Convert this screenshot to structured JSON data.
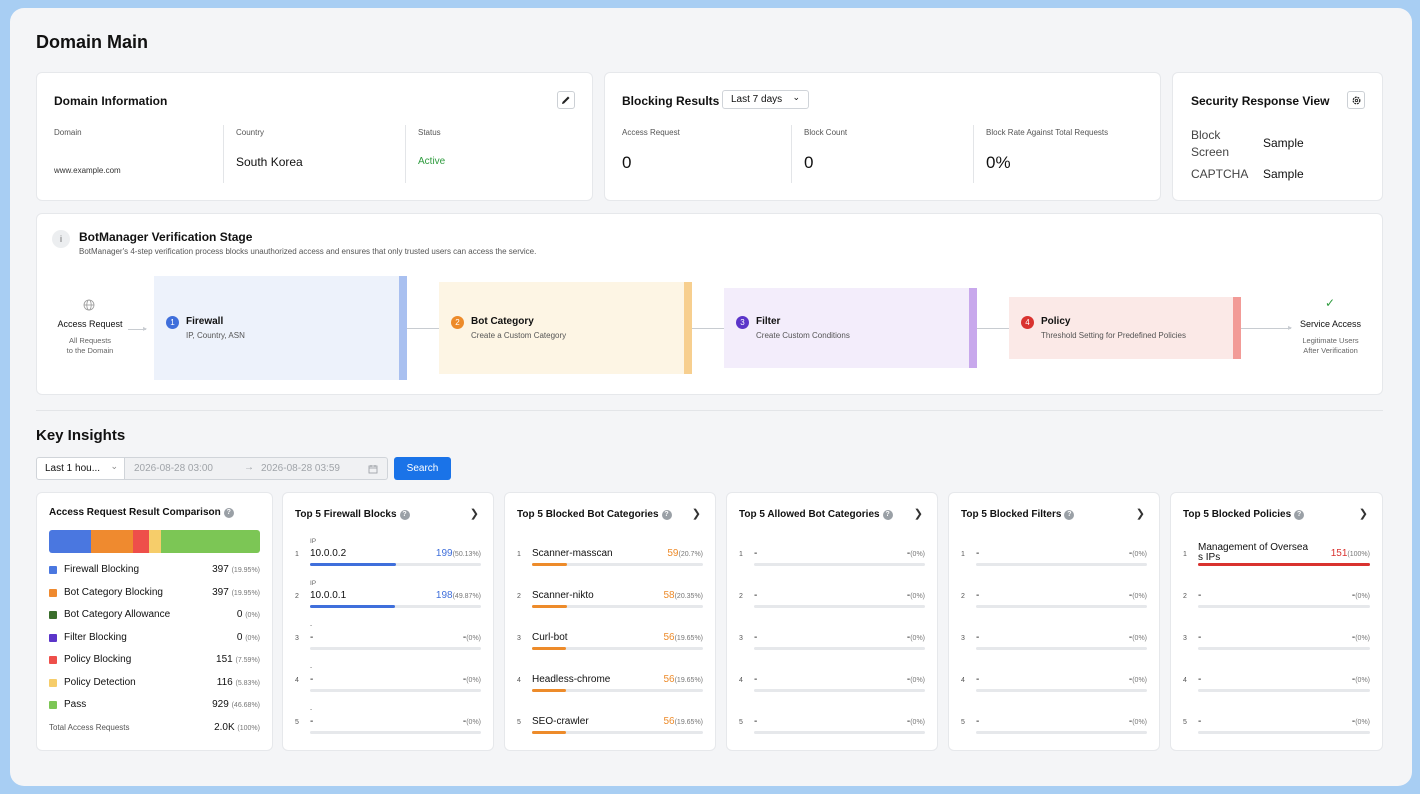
{
  "page": {
    "title": "Domain Main"
  },
  "domain_info": {
    "title": "Domain Information",
    "domain_label": "Domain",
    "domain_value": "www.example.com",
    "country_label": "Country",
    "country_value": "South Korea",
    "status_label": "Status",
    "status_value": "Active"
  },
  "blocking": {
    "title": "Blocking Results",
    "range": "Last 7 days",
    "access_label": "Access Request",
    "access_value": "0",
    "block_label": "Block Count",
    "block_value": "0",
    "rate_label": "Block Rate Against Total Requests",
    "rate_value": "0%"
  },
  "security": {
    "title": "Security Response View",
    "rows": [
      {
        "label": "Block Screen",
        "value": "Sample"
      },
      {
        "label": "CAPTCHA",
        "value": "Sample"
      }
    ]
  },
  "verification": {
    "title": "BotManager Verification Stage",
    "subtitle": "BotManager's 4-step verification process blocks unauthorized access and ensures that only trusted users can access the service.",
    "access_request": "Access Request",
    "access_desc1": "All Requests",
    "access_desc2": "to the Domain",
    "stages": [
      {
        "num": "1",
        "name": "Firewall",
        "desc": "IP, Country, ASN",
        "color": "#3f6fdb"
      },
      {
        "num": "2",
        "name": "Bot Category",
        "desc": "Create a Custom Category",
        "color": "#ed8b2a"
      },
      {
        "num": "3",
        "name": "Filter",
        "desc": "Create Custom Conditions",
        "color": "#5b35c9"
      },
      {
        "num": "4",
        "name": "Policy",
        "desc": "Threshold Setting for Predefined Policies",
        "color": "#d9322f"
      }
    ],
    "service_access": "Service Access",
    "service_desc1": "Legitimate Users",
    "service_desc2": "After Verification"
  },
  "insights": {
    "title": "Key Insights",
    "range_select": "Last 1 hou...",
    "date_from": "2026-08-28 03:00",
    "date_to": "2026-08-28 03:59",
    "search_label": "Search"
  },
  "comparison": {
    "title": "Access Request Result Comparison",
    "items": [
      {
        "name": "Firewall Blocking",
        "value": "397",
        "pct": "(19.95%)",
        "color": "#4a77e0",
        "share": 19.95
      },
      {
        "name": "Bot Category Blocking",
        "value": "397",
        "pct": "(19.95%)",
        "color": "#ef8a2f",
        "share": 19.95
      },
      {
        "name": "Bot Category Allowance",
        "value": "0",
        "pct": "(0%)",
        "color": "#3a6e2c",
        "share": 0
      },
      {
        "name": "Filter Blocking",
        "value": "0",
        "pct": "(0%)",
        "color": "#5b35c9",
        "share": 0
      },
      {
        "name": "Policy Blocking",
        "value": "151",
        "pct": "(7.59%)",
        "color": "#ee4f4a",
        "share": 7.59
      },
      {
        "name": "Policy Detection",
        "value": "116",
        "pct": "(5.83%)",
        "color": "#f6cd6a",
        "share": 5.83
      },
      {
        "name": "Pass",
        "value": "929",
        "pct": "(46.68%)",
        "color": "#7cc655",
        "share": 46.68
      }
    ],
    "total_label": "Total Access Requests",
    "total_value": "2.0K",
    "total_pct": "(100%)"
  },
  "panels": [
    {
      "title": "Top 5 Firewall Blocks",
      "color": "#3f6fdb",
      "rows": [
        {
          "rank": "1",
          "sub": "IP",
          "label": "10.0.0.2",
          "value": "199",
          "pct": "(50.13%)",
          "fill": 50.13
        },
        {
          "rank": "2",
          "sub": "IP",
          "label": "10.0.0.1",
          "value": "198",
          "pct": "(49.87%)",
          "fill": 49.87
        },
        {
          "rank": "3",
          "sub": "-",
          "label": "-",
          "value": "-",
          "pct": "(0%)",
          "fill": 0
        },
        {
          "rank": "4",
          "sub": "-",
          "label": "-",
          "value": "-",
          "pct": "(0%)",
          "fill": 0
        },
        {
          "rank": "5",
          "sub": "-",
          "label": "-",
          "value": "-",
          "pct": "(0%)",
          "fill": 0
        }
      ]
    },
    {
      "title": "Top 5 Blocked Bot Categories",
      "color": "#ed8b2a",
      "rows": [
        {
          "rank": "1",
          "label": "Scanner-masscan",
          "value": "59",
          "pct": "(20.7%)",
          "fill": 20.7
        },
        {
          "rank": "2",
          "label": "Scanner-nikto",
          "value": "58",
          "pct": "(20.35%)",
          "fill": 20.35
        },
        {
          "rank": "3",
          "label": "Curl-bot",
          "value": "56",
          "pct": "(19.65%)",
          "fill": 19.65
        },
        {
          "rank": "4",
          "label": "Headless-chrome",
          "value": "56",
          "pct": "(19.65%)",
          "fill": 19.65
        },
        {
          "rank": "5",
          "label": "SEO-crawler",
          "value": "56",
          "pct": "(19.65%)",
          "fill": 19.65
        }
      ]
    },
    {
      "title": "Top 5 Allowed Bot Categories",
      "color": "#3a6e2c",
      "rows": [
        {
          "rank": "1",
          "label": "-",
          "value": "-",
          "pct": "(0%)",
          "fill": 0
        },
        {
          "rank": "2",
          "label": "-",
          "value": "-",
          "pct": "(0%)",
          "fill": 0
        },
        {
          "rank": "3",
          "label": "-",
          "value": "-",
          "pct": "(0%)",
          "fill": 0
        },
        {
          "rank": "4",
          "label": "-",
          "value": "-",
          "pct": "(0%)",
          "fill": 0
        },
        {
          "rank": "5",
          "label": "-",
          "value": "-",
          "pct": "(0%)",
          "fill": 0
        }
      ]
    },
    {
      "title": "Top 5 Blocked Filters",
      "color": "#5b35c9",
      "rows": [
        {
          "rank": "1",
          "label": "-",
          "value": "-",
          "pct": "(0%)",
          "fill": 0
        },
        {
          "rank": "2",
          "label": "-",
          "value": "-",
          "pct": "(0%)",
          "fill": 0
        },
        {
          "rank": "3",
          "label": "-",
          "value": "-",
          "pct": "(0%)",
          "fill": 0
        },
        {
          "rank": "4",
          "label": "-",
          "value": "-",
          "pct": "(0%)",
          "fill": 0
        },
        {
          "rank": "5",
          "label": "-",
          "value": "-",
          "pct": "(0%)",
          "fill": 0
        }
      ]
    },
    {
      "title": "Top 5 Blocked Policies",
      "color": "#d9322f",
      "rows": [
        {
          "rank": "1",
          "label": "Management of Overseas IPs",
          "value": "151",
          "pct": "(100%)",
          "fill": 100
        },
        {
          "rank": "2",
          "label": "-",
          "value": "-",
          "pct": "(0%)",
          "fill": 0
        },
        {
          "rank": "3",
          "label": "-",
          "value": "-",
          "pct": "(0%)",
          "fill": 0
        },
        {
          "rank": "4",
          "label": "-",
          "value": "-",
          "pct": "(0%)",
          "fill": 0
        },
        {
          "rank": "5",
          "label": "-",
          "value": "-",
          "pct": "(0%)",
          "fill": 0
        }
      ]
    }
  ]
}
